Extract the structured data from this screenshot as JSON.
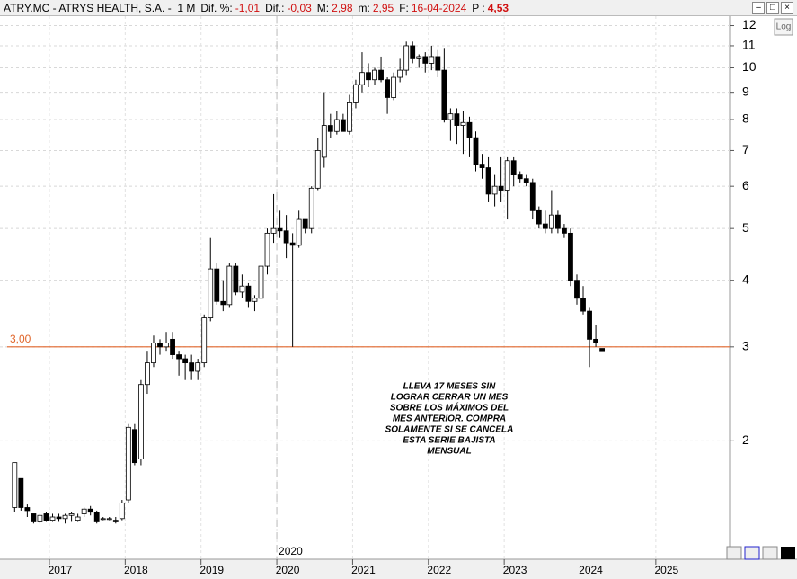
{
  "header": {
    "symbol": "ATRY.MC - ATRYS HEALTH, S.A. -  1 M",
    "fields": [
      {
        "label": "Dif. %:",
        "value": "-1,01"
      },
      {
        "label": "Dif.:",
        "value": "-0,03"
      },
      {
        "label": "M:",
        "value": "2,98"
      },
      {
        "label": "m:",
        "value": "2,95"
      },
      {
        "label": "F:",
        "value": "16-04-2024"
      },
      {
        "label": "P :",
        "value": "4,53"
      }
    ],
    "log_button": "Log"
  },
  "chart_data": {
    "type": "candlestick",
    "log": true,
    "grid": true,
    "up_color": "#ffffff",
    "down_color": "#000000",
    "x": [
      "2016-07",
      "2016-08",
      "2016-09",
      "2016-10",
      "2016-11",
      "2016-12",
      "2017-01",
      "2017-02",
      "2017-03",
      "2017-04",
      "2017-05",
      "2017-06",
      "2017-07",
      "2017-08",
      "2017-09",
      "2017-10",
      "2017-11",
      "2017-12",
      "2018-01",
      "2018-02",
      "2018-03",
      "2018-04",
      "2018-05",
      "2018-06",
      "2018-07",
      "2018-08",
      "2018-09",
      "2018-10",
      "2018-11",
      "2018-12",
      "2019-01",
      "2019-02",
      "2019-03",
      "2019-04",
      "2019-05",
      "2019-06",
      "2019-07",
      "2019-08",
      "2019-09",
      "2019-10",
      "2019-11",
      "2019-12",
      "2020-01",
      "2020-02",
      "2020-03",
      "2020-04",
      "2020-05",
      "2020-06",
      "2020-07",
      "2020-08",
      "2020-09",
      "2020-10",
      "2020-11",
      "2020-12",
      "2021-01",
      "2021-02",
      "2021-03",
      "2021-04",
      "2021-05",
      "2021-06",
      "2021-07",
      "2021-08",
      "2021-09",
      "2021-10",
      "2021-11",
      "2021-12",
      "2022-01",
      "2022-02",
      "2022-03",
      "2022-04",
      "2022-05",
      "2022-06",
      "2022-07",
      "2022-08",
      "2022-09",
      "2022-10",
      "2022-11",
      "2022-12",
      "2023-01",
      "2023-02",
      "2023-03",
      "2023-04",
      "2023-05",
      "2023-06",
      "2023-07",
      "2023-08",
      "2023-09",
      "2023-10",
      "2023-11",
      "2023-12",
      "2024-01",
      "2024-02",
      "2024-03",
      "2024-04"
    ],
    "open": [
      1.5,
      1.7,
      1.5,
      1.46,
      1.41,
      1.46,
      1.42,
      1.44,
      1.43,
      1.45,
      1.42,
      1.46,
      1.49,
      1.47,
      1.43,
      1.43,
      1.42,
      1.43,
      1.55,
      2.1,
      1.85,
      2.55,
      2.8,
      3.05,
      3.0,
      3.1,
      2.9,
      2.85,
      2.8,
      2.7,
      2.8,
      3.4,
      4.2,
      3.65,
      3.6,
      4.25,
      3.8,
      3.9,
      3.65,
      3.7,
      4.25,
      4.9,
      5.0,
      4.95,
      4.7,
      4.65,
      5.2,
      5.0,
      5.95,
      6.8,
      7.8,
      7.6,
      8.0,
      7.6,
      8.6,
      9.3,
      9.8,
      9.5,
      9.9,
      9.5,
      8.8,
      9.6,
      9.9,
      11.0,
      10.4,
      10.5,
      10.2,
      10.5,
      9.9,
      8.0,
      8.2,
      7.8,
      7.9,
      7.4,
      6.6,
      6.5,
      5.8,
      6.0,
      5.9,
      6.7,
      6.3,
      6.2,
      6.1,
      5.4,
      5.1,
      5.0,
      5.3,
      5.0,
      4.9,
      4.0,
      3.7,
      3.5,
      3.1,
      2.98
    ],
    "high": [
      1.82,
      1.7,
      1.52,
      1.46,
      1.46,
      1.47,
      1.46,
      1.46,
      1.46,
      1.47,
      1.46,
      1.5,
      1.51,
      1.48,
      1.44,
      1.44,
      1.44,
      1.55,
      2.15,
      2.15,
      2.6,
      2.95,
      3.15,
      3.1,
      3.2,
      3.2,
      2.95,
      2.9,
      2.9,
      2.85,
      3.45,
      4.8,
      4.3,
      4.0,
      4.3,
      4.3,
      4.1,
      3.95,
      3.75,
      4.3,
      5.0,
      5.8,
      5.4,
      5.3,
      4.9,
      5.4,
      5.2,
      6.0,
      7.4,
      9.0,
      8.2,
      8.3,
      8.2,
      8.9,
      9.5,
      10.7,
      10.2,
      10.0,
      10.5,
      9.6,
      9.8,
      10.4,
      11.2,
      11.2,
      10.6,
      10.7,
      11.0,
      10.8,
      10.9,
      8.4,
      8.4,
      8.3,
      8.1,
      7.6,
      6.9,
      6.8,
      6.3,
      6.8,
      6.8,
      6.8,
      6.4,
      6.3,
      6.2,
      5.5,
      5.4,
      5.9,
      5.4,
      5.1,
      5.0,
      4.1,
      3.9,
      3.55,
      3.3,
      2.98
    ],
    "low": [
      1.47,
      1.48,
      1.44,
      1.4,
      1.4,
      1.41,
      1.41,
      1.41,
      1.4,
      1.41,
      1.41,
      1.44,
      1.45,
      1.4,
      1.42,
      1.42,
      1.4,
      1.42,
      1.53,
      1.8,
      1.8,
      2.45,
      2.75,
      2.9,
      2.95,
      2.85,
      2.65,
      2.6,
      2.6,
      2.6,
      2.75,
      3.35,
      3.6,
      3.5,
      3.55,
      3.75,
      3.7,
      3.55,
      3.5,
      3.55,
      4.1,
      4.7,
      4.8,
      4.4,
      3.0,
      4.6,
      4.9,
      4.9,
      5.9,
      6.5,
      7.4,
      7.5,
      7.6,
      7.5,
      8.4,
      9.0,
      9.2,
      9.3,
      9.4,
      8.2,
      8.7,
      9.4,
      9.7,
      10.2,
      10.0,
      9.8,
      9.9,
      9.6,
      7.9,
      7.3,
      7.2,
      6.9,
      6.8,
      6.4,
      6.2,
      5.6,
      5.5,
      5.6,
      5.2,
      6.0,
      6.1,
      6.0,
      5.2,
      5.0,
      4.9,
      4.9,
      4.9,
      4.8,
      3.9,
      3.6,
      3.45,
      2.75,
      3.0,
      2.95
    ],
    "close": [
      1.82,
      1.5,
      1.48,
      1.41,
      1.45,
      1.42,
      1.44,
      1.43,
      1.45,
      1.46,
      1.44,
      1.49,
      1.47,
      1.41,
      1.43,
      1.43,
      1.41,
      1.53,
      2.12,
      1.82,
      2.55,
      2.8,
      3.05,
      3.0,
      3.05,
      2.9,
      2.85,
      2.8,
      2.7,
      2.8,
      3.4,
      4.2,
      3.65,
      3.6,
      4.25,
      3.8,
      3.9,
      3.65,
      3.7,
      4.25,
      4.9,
      5.0,
      4.95,
      4.7,
      4.65,
      5.2,
      5.0,
      5.95,
      7.0,
      7.8,
      7.6,
      8.0,
      7.6,
      8.6,
      9.3,
      9.8,
      9.5,
      9.9,
      9.5,
      8.8,
      9.6,
      9.9,
      11.0,
      10.4,
      10.5,
      10.2,
      10.5,
      9.9,
      8.0,
      8.2,
      7.8,
      7.9,
      7.4,
      6.6,
      6.5,
      5.8,
      6.0,
      5.9,
      6.7,
      6.3,
      6.2,
      6.1,
      5.4,
      5.1,
      5.0,
      5.3,
      5.0,
      4.9,
      4.0,
      3.7,
      3.5,
      3.1,
      3.05,
      2.95
    ],
    "ylim": [
      1.2,
      12.5
    ],
    "yticks": [
      2,
      3,
      4,
      5,
      6,
      7,
      8,
      9,
      10,
      11,
      12
    ],
    "xticks": [
      {
        "value": "2017-01",
        "label": "2017"
      },
      {
        "value": "2018-01",
        "label": "2018"
      },
      {
        "value": "2019-01",
        "label": "2019"
      },
      {
        "value": "2020-01",
        "label": "2020"
      },
      {
        "value": "2021-01",
        "label": "2021"
      },
      {
        "value": "2022-01",
        "label": "2022"
      },
      {
        "value": "2023-01",
        "label": "2023"
      },
      {
        "value": "2024-01",
        "label": "2024"
      },
      {
        "value": "2025-01",
        "label": "2025"
      }
    ],
    "hline": {
      "value": 3,
      "label": "3,00",
      "color": "#e0652a"
    },
    "vline": {
      "x": "2020-01",
      "label": "2020"
    },
    "annotation": [
      "LLEVA 17 MESES SIN",
      "LOGRAR CERRAR UN MES",
      "SOBRE LOS MÁXIMOS DEL",
      "MES ANTERIOR. COMPRA",
      "SOLAMENTE SI SE CANCELA",
      "ESTA SERIE BAJISTA",
      "MENSUAL"
    ]
  }
}
